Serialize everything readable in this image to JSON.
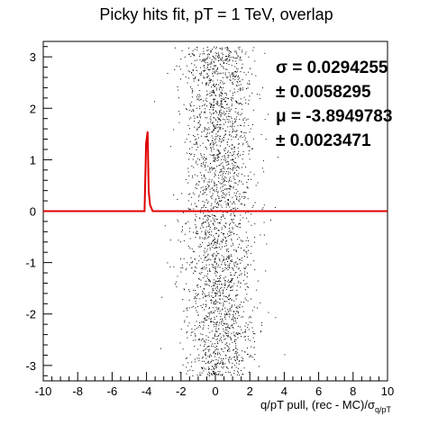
{
  "chart_data": {
    "type": "scatter",
    "title": "Picky hits fit, pT = 1 TeV, overlap",
    "xlabel": {
      "main": "q/pT pull, (rec - MC)/σ",
      "subscript": "q/pT"
    },
    "ylabel": "",
    "xlim": [
      -10,
      10
    ],
    "ylim": [
      -3.3,
      3.3
    ],
    "xticks": [
      -10,
      -8,
      -6,
      -4,
      -2,
      0,
      2,
      4,
      6,
      8,
      10
    ],
    "yticks": [
      -3,
      -2,
      -1,
      0,
      1,
      2,
      3
    ],
    "grid": false,
    "stats_box": [
      "σ = 0.0294255",
      "± 0.0058295",
      "μ = -3.8949783",
      "± 0.0023471"
    ],
    "series": [
      {
        "kind": "scatter-cloud",
        "color": "#000000",
        "center_x": 0.2,
        "sigma_x": 1.0,
        "y_range": [
          -3.2,
          3.2
        ],
        "n_points": 2600
      },
      {
        "kind": "fit-curve",
        "color": "#e00000",
        "baseline": 0.0,
        "peak_x": -3.8949783,
        "peak_height": 1.55,
        "sigma": 0.0294255
      }
    ]
  }
}
